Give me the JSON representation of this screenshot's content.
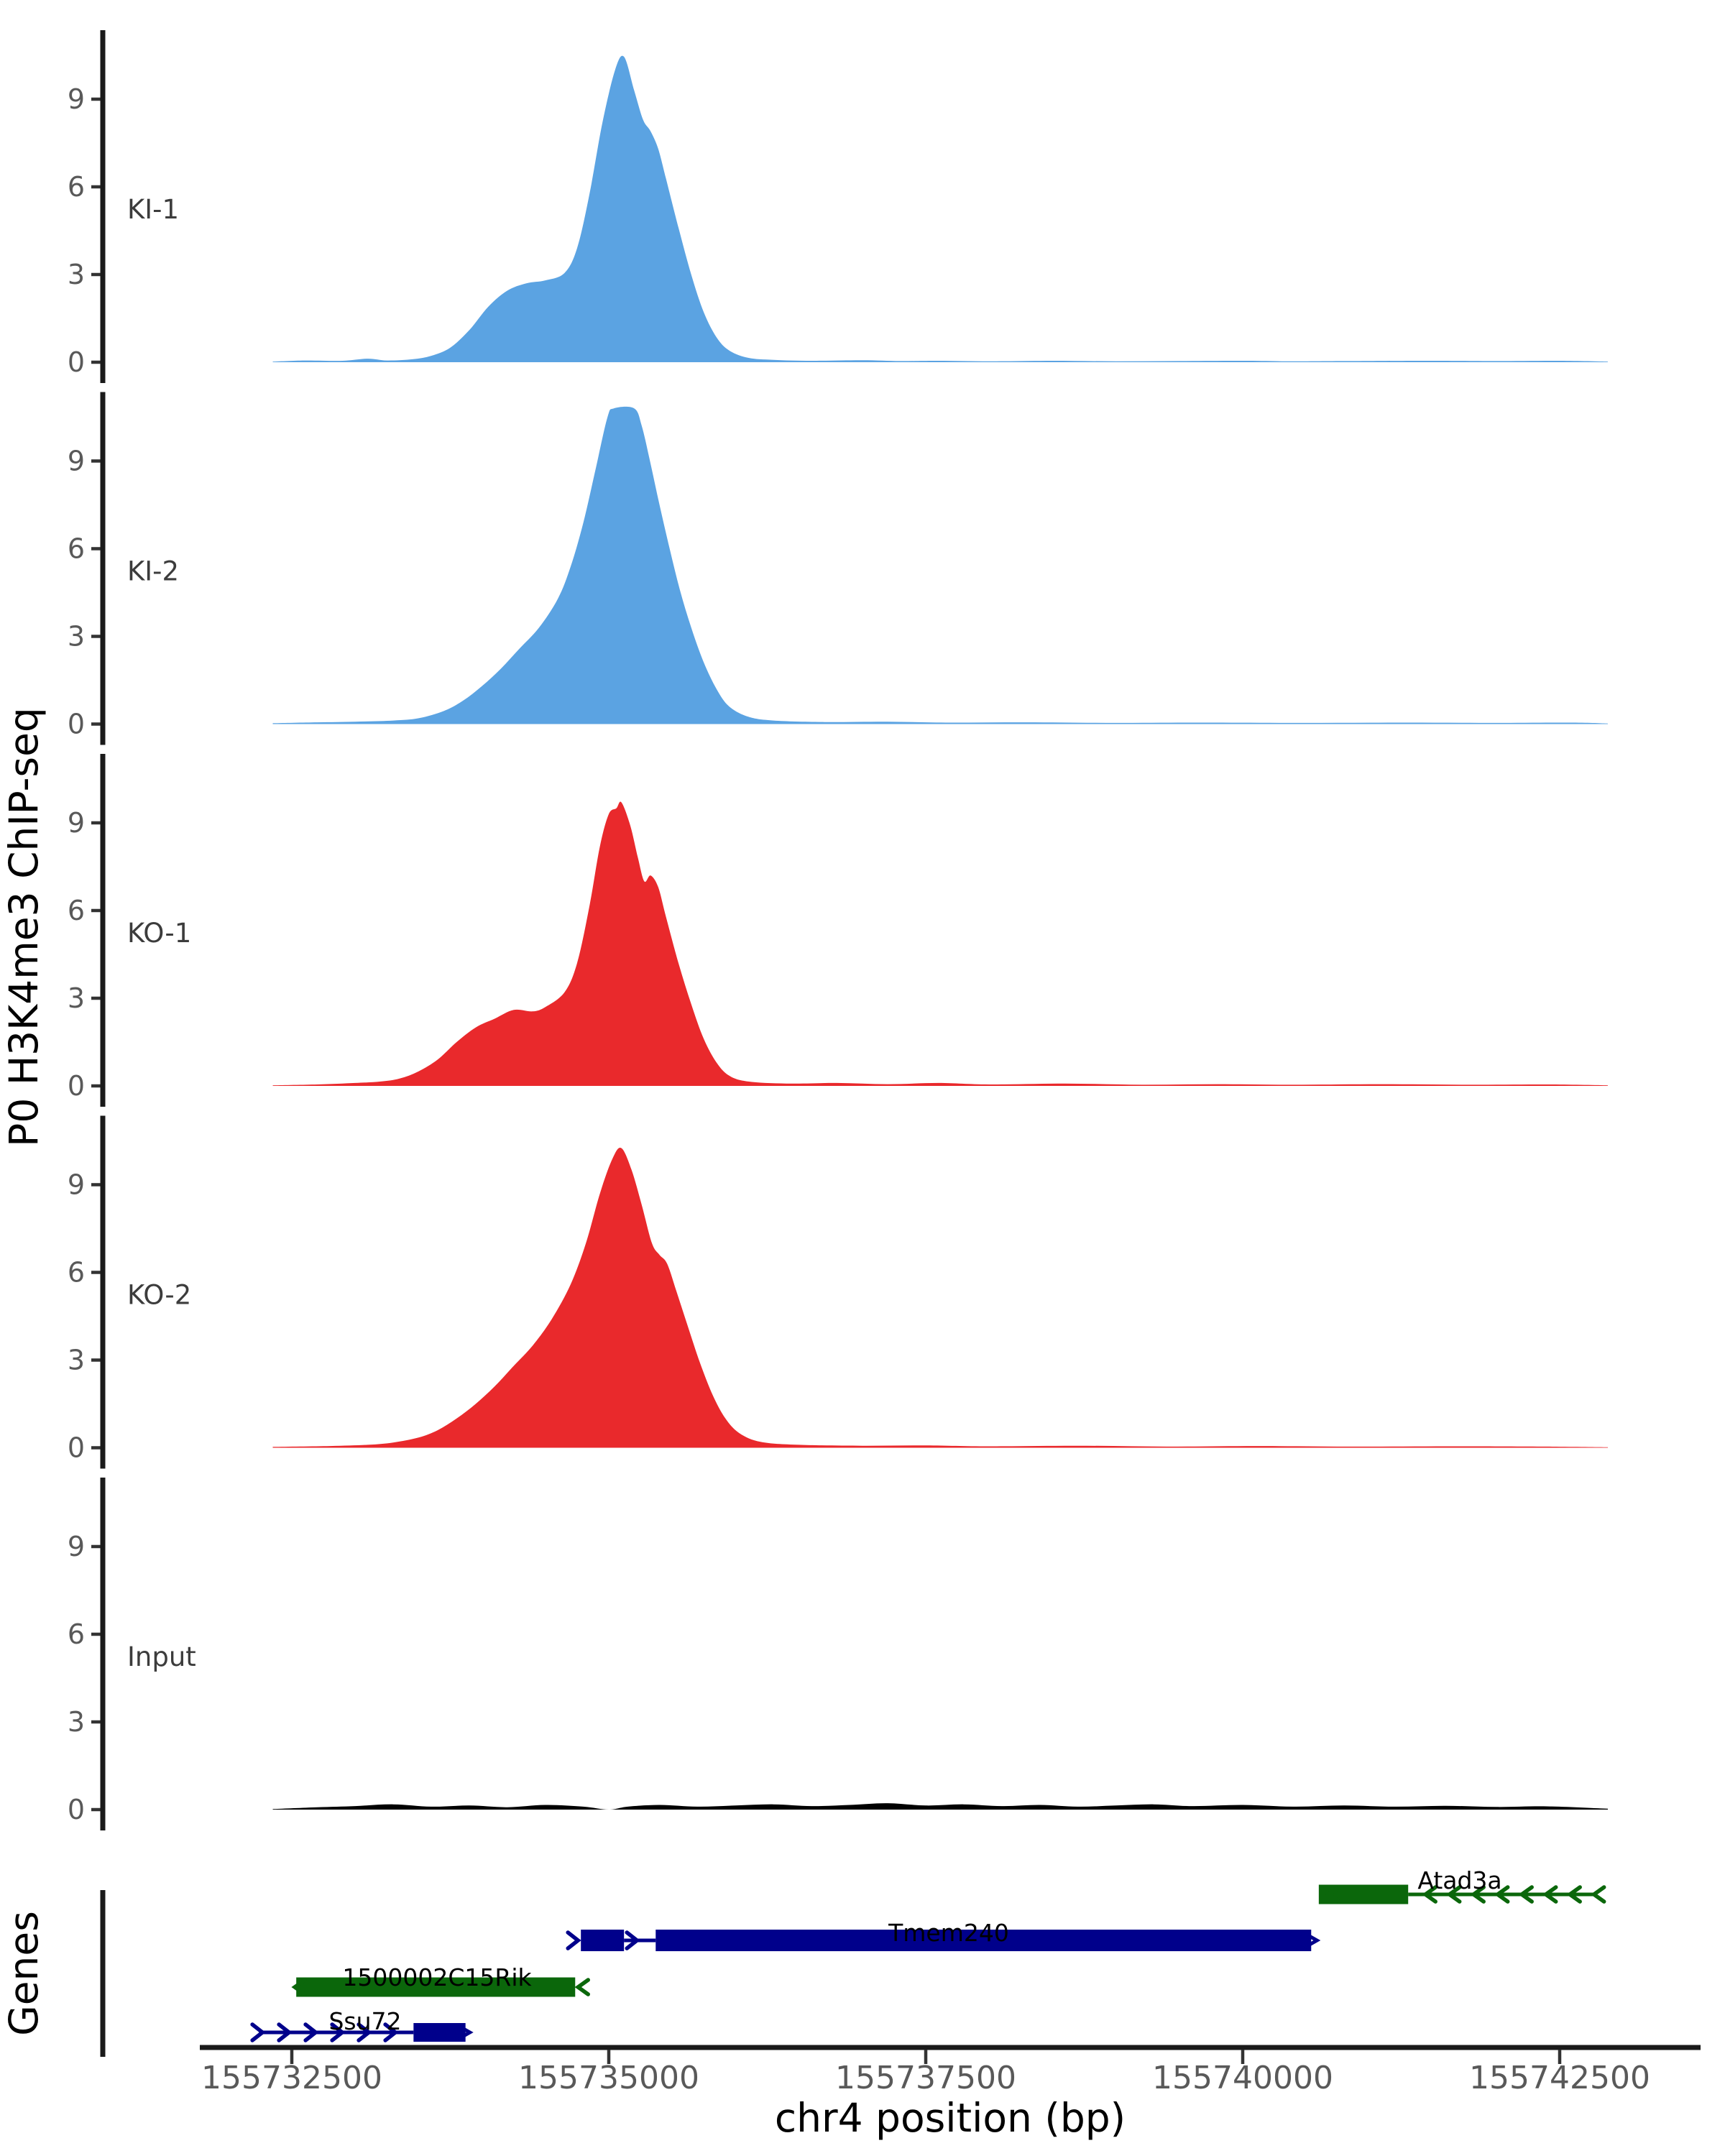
{
  "figure": {
    "background": "#ffffff"
  },
  "y_axis": {
    "title": "P0 H3K4me3 ChIP-seq",
    "tick_labels": [
      "0",
      "3",
      "6",
      "9"
    ]
  },
  "genes_panel": {
    "title": "Genes"
  },
  "x_axis": {
    "title": "chr4 position (bp)",
    "tick_labels": [
      "155732500",
      "155735000",
      "155737500",
      "155740000",
      "155742500"
    ],
    "tick_positions_bp": [
      155732500,
      155735000,
      155737500,
      155740000,
      155742500
    ]
  },
  "chart_data": {
    "type": "area",
    "title": "",
    "xlabel": "chr4 position (bp)",
    "ylabel": "P0 H3K4me3 ChIP-seq",
    "x_range_bp": [
      155731775,
      155743610
    ],
    "y_ticks": [
      0,
      3,
      6,
      9
    ],
    "ylim": [
      0,
      11.3
    ],
    "grid": false,
    "legend_position": "none",
    "facet_labels": [
      "KI-1",
      "KI-2",
      "KO-1",
      "KO-2",
      "Input",
      "Genes"
    ],
    "tracks": [
      {
        "label": "KI-1",
        "color": "#5ba3e2",
        "points": [
          [
            155732350,
            0.02
          ],
          [
            155732600,
            0.06
          ],
          [
            155732900,
            0.05
          ],
          [
            155733100,
            0.12
          ],
          [
            155733250,
            0.06
          ],
          [
            155733450,
            0.1
          ],
          [
            155733600,
            0.22
          ],
          [
            155733750,
            0.5
          ],
          [
            155733900,
            1.1
          ],
          [
            155734050,
            1.9
          ],
          [
            155734200,
            2.45
          ],
          [
            155734350,
            2.7
          ],
          [
            155734500,
            2.8
          ],
          [
            155734650,
            3.05
          ],
          [
            155734750,
            3.9
          ],
          [
            155734850,
            5.8
          ],
          [
            155734950,
            8.2
          ],
          [
            155735050,
            10.0
          ],
          [
            155735120,
            10.45
          ],
          [
            155735200,
            9.3
          ],
          [
            155735270,
            8.3
          ],
          [
            155735330,
            7.9
          ],
          [
            155735390,
            7.3
          ],
          [
            155735450,
            6.3
          ],
          [
            155735550,
            4.6
          ],
          [
            155735650,
            3.0
          ],
          [
            155735750,
            1.7
          ],
          [
            155735850,
            0.85
          ],
          [
            155735950,
            0.4
          ],
          [
            155736100,
            0.15
          ],
          [
            155736300,
            0.08
          ],
          [
            155736600,
            0.05
          ],
          [
            155737000,
            0.07
          ],
          [
            155737300,
            0.04
          ],
          [
            155737600,
            0.05
          ],
          [
            155738000,
            0.03
          ],
          [
            155738500,
            0.05
          ],
          [
            155739000,
            0.03
          ],
          [
            155739500,
            0.04
          ],
          [
            155740000,
            0.05
          ],
          [
            155740400,
            0.03
          ],
          [
            155740800,
            0.04
          ],
          [
            155741500,
            0.05
          ],
          [
            155742000,
            0.04
          ],
          [
            155742500,
            0.05
          ],
          [
            155742880,
            0.02
          ]
        ]
      },
      {
        "label": "KI-2",
        "color": "#5ba3e2",
        "points": [
          [
            155732350,
            0.03
          ],
          [
            155732700,
            0.06
          ],
          [
            155733000,
            0.08
          ],
          [
            155733300,
            0.12
          ],
          [
            155733500,
            0.2
          ],
          [
            155733700,
            0.45
          ],
          [
            155733850,
            0.8
          ],
          [
            155734000,
            1.3
          ],
          [
            155734150,
            1.9
          ],
          [
            155734300,
            2.6
          ],
          [
            155734450,
            3.3
          ],
          [
            155734600,
            4.3
          ],
          [
            155734700,
            5.4
          ],
          [
            155734800,
            6.9
          ],
          [
            155734900,
            8.8
          ],
          [
            155734990,
            10.5
          ],
          [
            155735040,
            10.8
          ],
          [
            155735200,
            10.8
          ],
          [
            155735260,
            10.2
          ],
          [
            155735330,
            8.9
          ],
          [
            155735400,
            7.5
          ],
          [
            155735480,
            6.0
          ],
          [
            155735560,
            4.6
          ],
          [
            155735650,
            3.3
          ],
          [
            155735750,
            2.1
          ],
          [
            155735850,
            1.2
          ],
          [
            155735950,
            0.6
          ],
          [
            155736100,
            0.25
          ],
          [
            155736300,
            0.12
          ],
          [
            155736700,
            0.07
          ],
          [
            155737200,
            0.08
          ],
          [
            155737700,
            0.05
          ],
          [
            155738300,
            0.06
          ],
          [
            155739000,
            0.04
          ],
          [
            155739700,
            0.05
          ],
          [
            155740500,
            0.04
          ],
          [
            155741300,
            0.05
          ],
          [
            155742000,
            0.04
          ],
          [
            155742600,
            0.05
          ],
          [
            155742880,
            0.02
          ]
        ]
      },
      {
        "label": "KO-1",
        "color": "#e9292c",
        "points": [
          [
            155732350,
            0.02
          ],
          [
            155732700,
            0.05
          ],
          [
            155733000,
            0.1
          ],
          [
            155733200,
            0.15
          ],
          [
            155733350,
            0.25
          ],
          [
            155733500,
            0.5
          ],
          [
            155733650,
            0.9
          ],
          [
            155733800,
            1.5
          ],
          [
            155733950,
            2.0
          ],
          [
            155734100,
            2.3
          ],
          [
            155734250,
            2.6
          ],
          [
            155734400,
            2.55
          ],
          [
            155734500,
            2.7
          ],
          [
            155734650,
            3.2
          ],
          [
            155734750,
            4.2
          ],
          [
            155734850,
            6.2
          ],
          [
            155734930,
            8.2
          ],
          [
            155735000,
            9.3
          ],
          [
            155735060,
            9.5
          ],
          [
            155735100,
            9.7
          ],
          [
            155735170,
            8.9
          ],
          [
            155735230,
            7.8
          ],
          [
            155735280,
            7.0
          ],
          [
            155735330,
            7.2
          ],
          [
            155735390,
            6.8
          ],
          [
            155735450,
            5.8
          ],
          [
            155735550,
            4.2
          ],
          [
            155735650,
            2.8
          ],
          [
            155735750,
            1.6
          ],
          [
            155735850,
            0.8
          ],
          [
            155735950,
            0.35
          ],
          [
            155736100,
            0.15
          ],
          [
            155736400,
            0.08
          ],
          [
            155736800,
            0.1
          ],
          [
            155737200,
            0.06
          ],
          [
            155737600,
            0.1
          ],
          [
            155738000,
            0.05
          ],
          [
            155738600,
            0.08
          ],
          [
            155739200,
            0.04
          ],
          [
            155739800,
            0.06
          ],
          [
            155740400,
            0.04
          ],
          [
            155741100,
            0.06
          ],
          [
            155741800,
            0.04
          ],
          [
            155742400,
            0.05
          ],
          [
            155742880,
            0.02
          ]
        ]
      },
      {
        "label": "KO-2",
        "color": "#e9292c",
        "points": [
          [
            155732350,
            0.03
          ],
          [
            155732800,
            0.06
          ],
          [
            155733100,
            0.1
          ],
          [
            155733300,
            0.18
          ],
          [
            155733500,
            0.35
          ],
          [
            155733650,
            0.6
          ],
          [
            155733800,
            1.0
          ],
          [
            155733950,
            1.5
          ],
          [
            155734100,
            2.1
          ],
          [
            155734250,
            2.8
          ],
          [
            155734400,
            3.5
          ],
          [
            155734550,
            4.4
          ],
          [
            155734700,
            5.6
          ],
          [
            155734820,
            7.0
          ],
          [
            155734930,
            8.7
          ],
          [
            155735030,
            9.9
          ],
          [
            155735100,
            10.25
          ],
          [
            155735180,
            9.5
          ],
          [
            155735260,
            8.3
          ],
          [
            155735340,
            7.0
          ],
          [
            155735400,
            6.6
          ],
          [
            155735460,
            6.3
          ],
          [
            155735530,
            5.4
          ],
          [
            155735620,
            4.2
          ],
          [
            155735720,
            2.9
          ],
          [
            155735820,
            1.8
          ],
          [
            155735920,
            1.0
          ],
          [
            155736030,
            0.5
          ],
          [
            155736200,
            0.2
          ],
          [
            155736500,
            0.1
          ],
          [
            155737000,
            0.07
          ],
          [
            155737500,
            0.08
          ],
          [
            155738000,
            0.05
          ],
          [
            155738700,
            0.07
          ],
          [
            155739400,
            0.04
          ],
          [
            155740100,
            0.06
          ],
          [
            155740900,
            0.04
          ],
          [
            155741700,
            0.05
          ],
          [
            155742400,
            0.04
          ],
          [
            155742880,
            0.02
          ]
        ]
      },
      {
        "label": "Input",
        "color": "#000000",
        "points": [
          [
            155732350,
            0.02
          ],
          [
            155732700,
            0.08
          ],
          [
            155733000,
            0.12
          ],
          [
            155733300,
            0.18
          ],
          [
            155733600,
            0.1
          ],
          [
            155733900,
            0.14
          ],
          [
            155734200,
            0.08
          ],
          [
            155734500,
            0.16
          ],
          [
            155734800,
            0.1
          ],
          [
            155735000,
            0.0
          ],
          [
            155735150,
            0.1
          ],
          [
            155735400,
            0.16
          ],
          [
            155735700,
            0.1
          ],
          [
            155736000,
            0.14
          ],
          [
            155736300,
            0.18
          ],
          [
            155736600,
            0.12
          ],
          [
            155736900,
            0.16
          ],
          [
            155737200,
            0.22
          ],
          [
            155737500,
            0.14
          ],
          [
            155737800,
            0.18
          ],
          [
            155738100,
            0.12
          ],
          [
            155738400,
            0.16
          ],
          [
            155738700,
            0.1
          ],
          [
            155739000,
            0.14
          ],
          [
            155739300,
            0.18
          ],
          [
            155739600,
            0.12
          ],
          [
            155740000,
            0.16
          ],
          [
            155740400,
            0.1
          ],
          [
            155740800,
            0.14
          ],
          [
            155741200,
            0.1
          ],
          [
            155741600,
            0.13
          ],
          [
            155742000,
            0.09
          ],
          [
            155742400,
            0.11
          ],
          [
            155742880,
            0.03
          ]
        ]
      }
    ],
    "genes": [
      {
        "name": "Ssu72",
        "strand": "+",
        "color": "#00008b",
        "row": 2,
        "tss_line": [
          155732240,
          155733460
        ],
        "exons": [
          [
            155733460,
            155733870
          ]
        ]
      },
      {
        "name": "1500002C15Rik",
        "strand": "-",
        "color": "#0b670b",
        "row": 1,
        "exons": [
          [
            155732535,
            155734735
          ]
        ]
      },
      {
        "name": "Tmem240",
        "strand": "+",
        "color": "#00008b",
        "row": 0,
        "exons": [
          [
            155734780,
            155735120
          ],
          [
            155735370,
            155740540
          ]
        ],
        "intron": [
          155735120,
          155735370
        ]
      },
      {
        "name": "Atad3a",
        "strand": "-",
        "color": "#0b670b",
        "row": 3,
        "exons": [
          [
            155740600,
            155741305
          ]
        ],
        "tail_line": [
          155741305,
          155742775
        ]
      }
    ]
  },
  "colors": {
    "ki_fill": "#5ba3e2",
    "ko_fill": "#e9292c",
    "input_fill": "#000000",
    "gene_plus": "#00008b",
    "gene_minus": "#0b670b",
    "axis_line": "#1a1a1a",
    "tick_mark": "#333333",
    "tick_label": "#595959",
    "track_label": "#3c3c3c",
    "title_text": "#000000"
  }
}
